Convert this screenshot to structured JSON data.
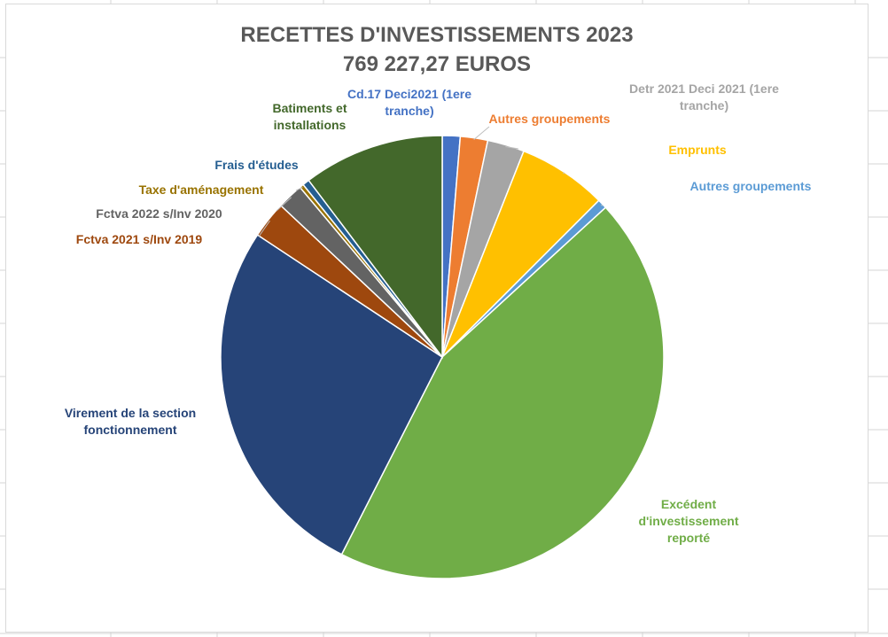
{
  "chart_data": {
    "type": "pie",
    "title": "RECETTES D'INVESTISSEMENTS 2023",
    "subtitle": "769 227,27 EUROS",
    "slices": [
      {
        "label": "Cd.17 Deci2021 (1ere tranche)",
        "percent": 1.3,
        "color": "#4472C4",
        "label_color": "#4472C4"
      },
      {
        "label": "Autres groupements",
        "percent": 2.0,
        "color": "#ED7D31",
        "label_color": "#ED7D31"
      },
      {
        "label": "Detr 2021  Deci 2021 (1ere tranche)",
        "percent": 2.7,
        "color": "#A5A5A5",
        "label_color": "#A5A5A5"
      },
      {
        "label": "Emprunts",
        "percent": 6.5,
        "color": "#FFC000",
        "label_color": "#FFC000"
      },
      {
        "label": "Autres groupements",
        "percent": 0.7,
        "color": "#5B9BD5",
        "label_color": "#5B9BD5"
      },
      {
        "label": "Excédent d'investissement reporté",
        "percent": 44.3,
        "color": "#70AD47",
        "label_color": "#70AD47"
      },
      {
        "label": "Virement de la section fonctionnement",
        "percent": 26.8,
        "color": "#264478",
        "label_color": "#264478"
      },
      {
        "label": "Fctva 2021 s/Inv 2019",
        "percent": 2.7,
        "color": "#9E480E",
        "label_color": "#9E480E"
      },
      {
        "label": "Fctva 2022 s/Inv 2020",
        "percent": 1.9,
        "color": "#636363",
        "label_color": "#636363"
      },
      {
        "label": "Taxe d'aménagement",
        "percent": 0.3,
        "color": "#997300",
        "label_color": "#997300"
      },
      {
        "label": "Frais d'études",
        "percent": 0.5,
        "color": "#255E91",
        "label_color": "#255E91"
      },
      {
        "label": "Batiments et installations",
        "percent": 10.3,
        "color": "#43682B",
        "label_color": "#43682B"
      }
    ],
    "legend": "none"
  }
}
